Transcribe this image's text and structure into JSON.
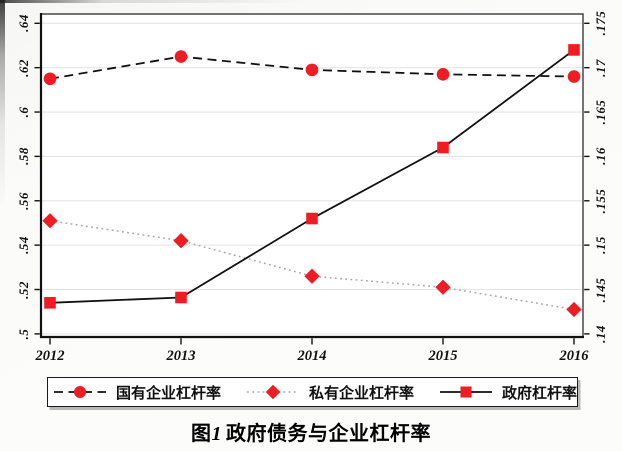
{
  "figure": {
    "caption": {
      "prefix": "图",
      "number": "1",
      "text": "政府债务与企业杠杆率"
    }
  },
  "chart_data": {
    "type": "line",
    "x_tick_labels": [
      "2012",
      "2013",
      "2014",
      "2015",
      "2016"
    ],
    "left_axis": {
      "tick_labels": [
        ".5",
        ".52",
        ".54",
        ".56",
        ".58",
        ".6",
        ".62",
        ".64"
      ],
      "tick_values": [
        0.5,
        0.52,
        0.54,
        0.56,
        0.58,
        0.6,
        0.62,
        0.64
      ],
      "range": [
        0.49859,
        0.64419
      ]
    },
    "right_axis": {
      "tick_labels": [
        ".14",
        ".145",
        ".15",
        ".155",
        ".16",
        ".165",
        ".17",
        ".175"
      ],
      "tick_values": [
        0.14,
        0.145,
        0.15,
        0.155,
        0.16,
        0.165,
        0.17,
        0.175
      ],
      "range": [
        0.139649,
        0.176048
      ]
    },
    "series": [
      {
        "name": "国有企业杠杆率",
        "axis": "left",
        "line_style": "dashed",
        "line_color": "#111111",
        "marker": "circle",
        "marker_color": "#ee1c23",
        "values": [
          0.615,
          0.625,
          0.619,
          0.617,
          0.616
        ]
      },
      {
        "name": "私有企业杠杆率",
        "axis": "left",
        "line_style": "dotted",
        "line_color": "#a6a6a6",
        "marker": "diamond",
        "marker_color": "#ee1c23",
        "values": [
          0.551,
          0.542,
          0.526,
          0.521,
          0.511
        ]
      },
      {
        "name": "政府杠杆率",
        "axis": "right",
        "line_style": "solid",
        "line_color": "#111111",
        "marker": "square",
        "marker_color": "#ee1c23",
        "values": [
          0.1435,
          0.1441,
          0.153,
          0.161,
          0.172
        ]
      }
    ],
    "grid": true,
    "legend_position": "bottom",
    "colors": {
      "marker_red": "#ee1c23",
      "gridline": "#e4e4e4",
      "axis": "#1a1a1a"
    }
  }
}
